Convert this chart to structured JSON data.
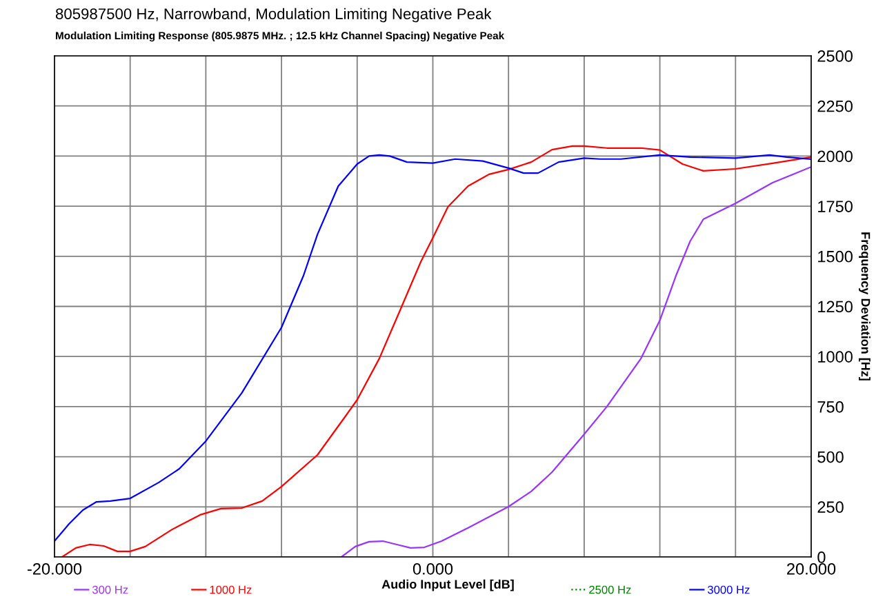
{
  "chart_data": {
    "type": "line",
    "title": "805987500 Hz, Narrowband, Modulation Limiting Negative Peak",
    "subtitle": "Modulation Limiting Response (805.9875 MHz. ; 12.5 kHz Channel Spacing) Negative Peak",
    "xlabel": "Audio Input Level [dB]",
    "ylabel": "Frequency Deviation [Hz]",
    "xlim": [
      -20,
      20
    ],
    "ylim": [
      0,
      2500
    ],
    "xticks": [
      {
        "value": -20,
        "label": "-20.000"
      },
      {
        "value": -16,
        "label": null
      },
      {
        "value": -12,
        "label": null
      },
      {
        "value": -8,
        "label": null
      },
      {
        "value": -4,
        "label": null
      },
      {
        "value": 0,
        "label": "0.000"
      },
      {
        "value": 4,
        "label": null
      },
      {
        "value": 8,
        "label": null
      },
      {
        "value": 12,
        "label": null
      },
      {
        "value": 16,
        "label": null
      },
      {
        "value": 20,
        "label": "20.000"
      }
    ],
    "yticks": [
      0,
      250,
      500,
      750,
      1000,
      1250,
      1500,
      1750,
      2000,
      2250,
      2500
    ],
    "grid": true,
    "legend": "bottom",
    "marker": "none",
    "series": [
      {
        "name": "300 Hz",
        "color": "#9933ff",
        "line_style": "solid",
        "x": [
          -20,
          -4.83,
          -4.1,
          -3.37,
          -2.64,
          -1.9,
          -1.18,
          -0.45,
          0.46,
          1.92,
          4,
          5.2,
          6.3,
          8,
          9.2,
          11,
          12,
          12.85,
          13.6,
          14.3,
          16,
          17.96,
          20
        ],
        "values": [
          0,
          0,
          52,
          76,
          79,
          62,
          45,
          48,
          79,
          148,
          251,
          327,
          423,
          612,
          750,
          990,
          1180,
          1403,
          1575,
          1685,
          1764,
          1867,
          1946
        ]
      },
      {
        "name": "1000 Hz",
        "color": "#ff0000",
        "line_style": "solid",
        "x": [
          -19.6,
          -18.87,
          -18.14,
          -17.4,
          -16.68,
          -16,
          -15.2,
          -13.77,
          -12.3,
          -11.2,
          -10.1,
          -9.02,
          -8,
          -6.1,
          -4.65,
          -4,
          -2.83,
          -1.73,
          -0.64,
          0,
          0.8,
          1.86,
          2.97,
          4,
          5.2,
          6.3,
          7.38,
          8,
          9.2,
          11,
          12,
          13.2,
          14.3,
          16,
          17.96,
          20
        ],
        "values": [
          0,
          45,
          62,
          55,
          28,
          28,
          52,
          138,
          210,
          241,
          244,
          279,
          351,
          509,
          698,
          784,
          990,
          1231,
          1472,
          1592,
          1747,
          1850,
          1909,
          1933,
          1970,
          2032,
          2050,
          2050,
          2040,
          2040,
          2030,
          1960,
          1926,
          1936,
          1964,
          1995
        ]
      },
      {
        "name": "2500 Hz",
        "color": "#008000",
        "line_style": "dotted"
      },
      {
        "name": "3000 Hz",
        "color": "#0000ff",
        "line_style": "solid",
        "x": [
          -20,
          -19.23,
          -18.5,
          -17.78,
          -17.05,
          -16,
          -14.5,
          -13.4,
          -12,
          -10.1,
          -8,
          -6.84,
          -6.1,
          -5.0,
          -4,
          -3.37,
          -2.83,
          -2.28,
          -1.37,
          0,
          1.18,
          2.64,
          4,
          4.8,
          5.56,
          6.65,
          8,
          8.84,
          9.94,
          12,
          13.6,
          16,
          17.8,
          18.7,
          20
        ],
        "values": [
          79,
          165,
          234,
          275,
          279,
          292,
          371,
          440,
          578,
          818,
          1145,
          1403,
          1609,
          1850,
          1960,
          2000,
          2005,
          2000,
          1970,
          1965,
          1985,
          1975,
          1940,
          1915,
          1915,
          1970,
          1990,
          1985,
          1985,
          2005,
          1995,
          1990,
          2005,
          1995,
          1985
        ]
      }
    ]
  }
}
